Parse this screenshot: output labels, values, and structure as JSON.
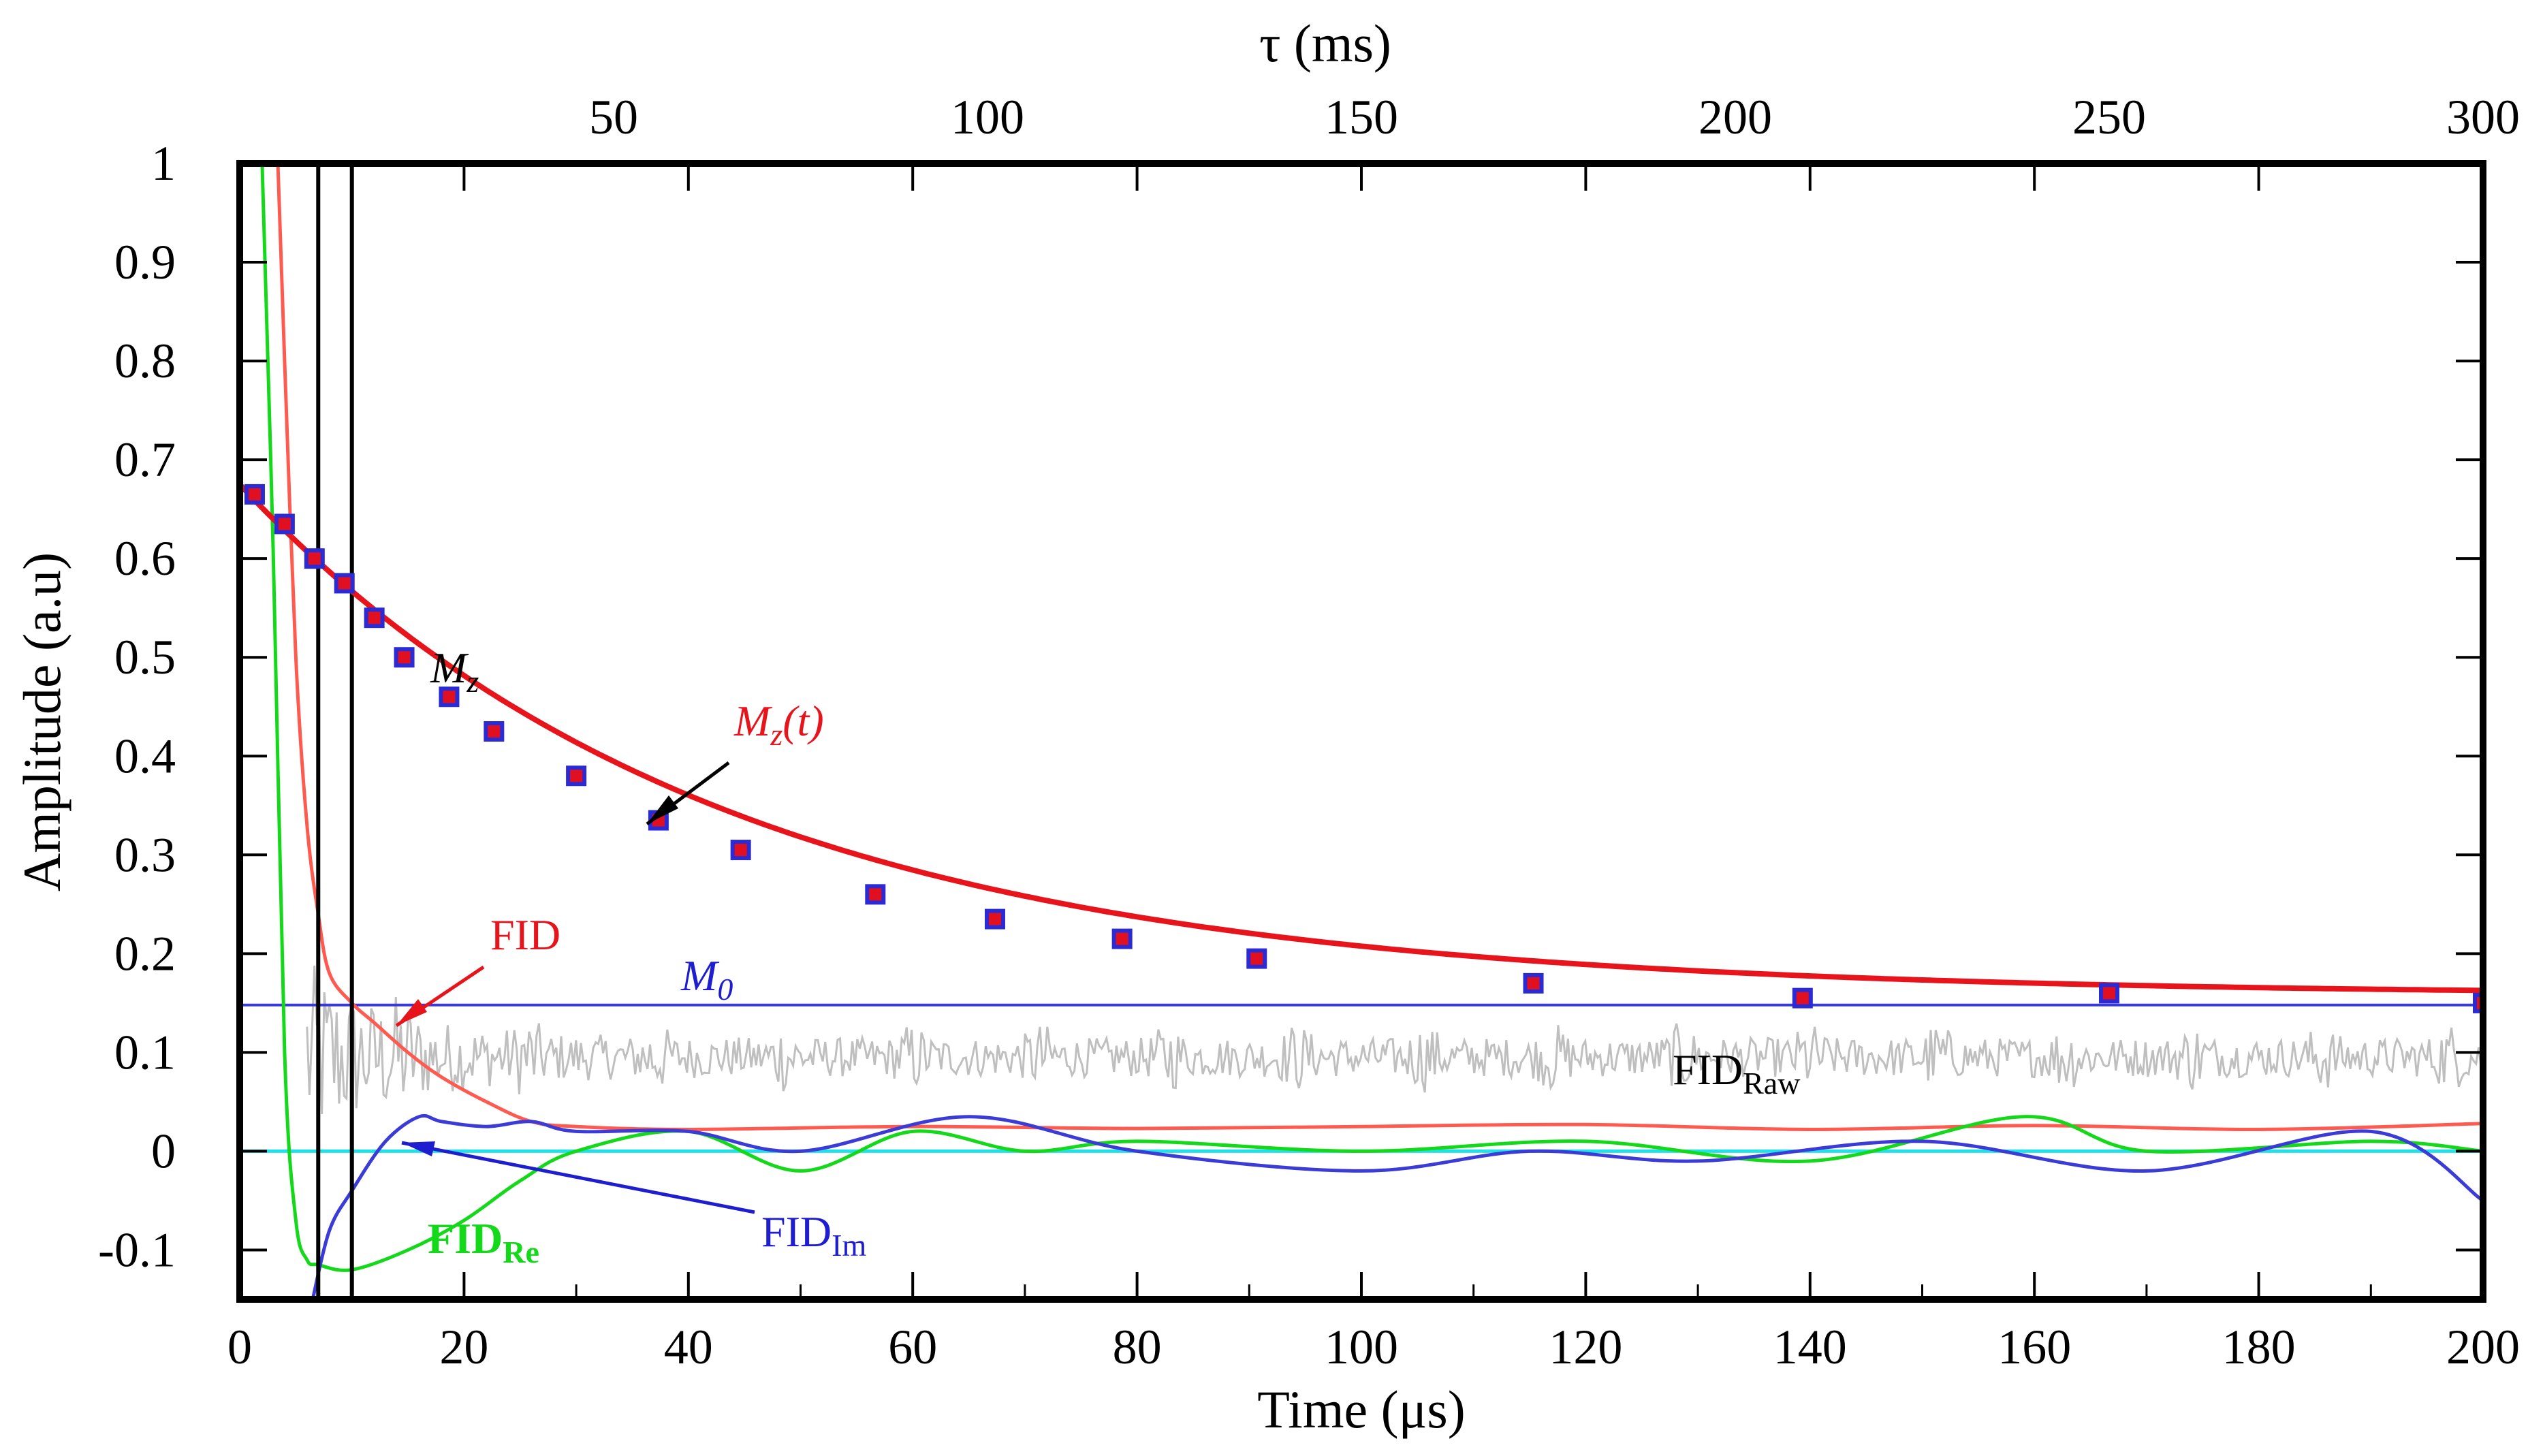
{
  "chart_data": {
    "type": "line",
    "x_bottom": {
      "label": "Time (μs)",
      "range": [
        0,
        200
      ],
      "ticks": [
        "0",
        "20",
        "40",
        "60",
        "80",
        "100",
        "120",
        "140",
        "160",
        "180",
        "200"
      ]
    },
    "x_top": {
      "label": "τ (ms)",
      "range": [
        0,
        300
      ],
      "ticks": [
        "50",
        "100",
        "150",
        "200",
        "250",
        "300"
      ]
    },
    "y": {
      "label": "Amplitude (a.u)",
      "range": [
        -0.15,
        1.0
      ],
      "ticks": [
        "1",
        "0.9",
        "0.8",
        "0.7",
        "0.6",
        "0.5",
        "0.4",
        "0.3",
        "0.2",
        "0.1",
        "0",
        "-0.1"
      ]
    },
    "cursor_lines_time_us": [
      7,
      10
    ],
    "series": [
      {
        "name": "Mz",
        "kind": "points",
        "x_axis": "top",
        "color": "#2b2bd6",
        "fill": "#e01020",
        "tau_ms": [
          2,
          6,
          10,
          14,
          18,
          22,
          28,
          34,
          45,
          56,
          67,
          85,
          101,
          118,
          136,
          173,
          209,
          250,
          300
        ],
        "amplitude": [
          0.665,
          0.635,
          0.6,
          0.575,
          0.54,
          0.5,
          0.46,
          0.425,
          0.38,
          0.335,
          0.305,
          0.26,
          0.235,
          0.215,
          0.195,
          0.17,
          0.155,
          0.16,
          0.15
        ]
      },
      {
        "name": "Mz(t)",
        "kind": "fit",
        "x_axis": "top",
        "color": "#e8141c",
        "model": "M0 + A·exp(-τ/T1)",
        "M0": 0.158,
        "A": 0.517,
        "T1_ms": 64
      },
      {
        "name": "M0",
        "kind": "constant",
        "color": "#3a3ad8",
        "value": 0.148
      },
      {
        "name": "FID",
        "kind": "line",
        "x_axis": "bottom",
        "color": "#ff5a50",
        "time_us": [
          3.4,
          4.0,
          5.0,
          6.0,
          7.0,
          8.0,
          10.0,
          12.0,
          15.0,
          18.0,
          22.0,
          26.0,
          30.0,
          40.0,
          60.0,
          80.0,
          100.0,
          120.0,
          140.0,
          160.0,
          180.0,
          200.0
        ],
        "amplitude": [
          1.0,
          0.8,
          0.5,
          0.33,
          0.24,
          0.18,
          0.15,
          0.13,
          0.1,
          0.075,
          0.05,
          0.03,
          0.025,
          0.022,
          0.025,
          0.023,
          0.025,
          0.027,
          0.022,
          0.026,
          0.022,
          0.028
        ]
      },
      {
        "name": "FIDRe",
        "kind": "line",
        "x_axis": "bottom",
        "color": "#14d81a",
        "time_us": [
          2.0,
          3.0,
          4.0,
          5.0,
          6.0,
          7.0,
          10.0,
          15.0,
          20.0,
          25.0,
          30.0,
          40.0,
          50.0,
          60.0,
          70.0,
          80.0,
          100.0,
          120.0,
          140.0,
          159.0,
          170.0,
          190.0,
          200.0
        ],
        "amplitude": [
          1.0,
          0.6,
          0.1,
          -0.07,
          -0.11,
          -0.115,
          -0.12,
          -0.1,
          -0.07,
          -0.03,
          0.0,
          0.02,
          -0.02,
          0.02,
          0.0,
          0.01,
          0.0,
          0.01,
          -0.01,
          0.035,
          0.0,
          0.01,
          0.0
        ]
      },
      {
        "name": "FIDIm",
        "kind": "line",
        "x_axis": "bottom",
        "color": "#3b3bd8",
        "time_us": [
          6.5,
          8.0,
          10.0,
          13.0,
          16.0,
          18.0,
          22.0,
          26.0,
          30.0,
          40.0,
          50.0,
          65.0,
          80.0,
          100.0,
          115.0,
          130.0,
          150.0,
          170.0,
          190.0,
          200.0
        ],
        "amplitude": [
          -0.15,
          -0.08,
          -0.04,
          0.01,
          0.035,
          0.03,
          0.025,
          0.03,
          0.02,
          0.02,
          0.0,
          0.035,
          0.0,
          -0.02,
          0.0,
          -0.01,
          0.01,
          -0.02,
          0.02,
          -0.05
        ]
      },
      {
        "name": "FIDRaw",
        "kind": "noise",
        "x_axis": "bottom",
        "color": "#bfbfbf",
        "baseline": 0.095,
        "noise_amplitude": 0.02,
        "initial_amplitude": 0.08,
        "decay_us": 8
      },
      {
        "name": "zero line",
        "kind": "constant",
        "color": "#22e0e8",
        "value": 0
      }
    ],
    "annotations": [
      {
        "text_main": "M",
        "text_sub": "z",
        "italic": true,
        "color": "#000000"
      },
      {
        "text_main": "M",
        "text_sub": "z",
        "text_suffix": "(t)",
        "italic": true,
        "color": "#e8141c"
      },
      {
        "text_main": "FID",
        "text_sub": "",
        "color": "#e8141c"
      },
      {
        "text_main": "M",
        "text_sub": "0",
        "italic": true,
        "color": "#1e1ed0"
      },
      {
        "text_main": "FID",
        "text_sub": "Raw",
        "color": "#000000"
      },
      {
        "text_main": "FID",
        "text_sub": "Re",
        "bold": true,
        "color": "#14d81a"
      },
      {
        "text_main": "FID",
        "text_sub": "Im",
        "color": "#1e1ed0"
      }
    ]
  }
}
